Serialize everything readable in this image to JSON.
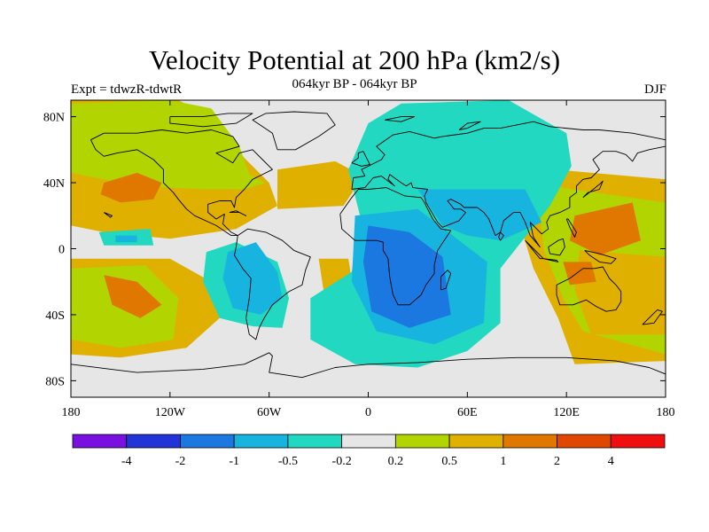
{
  "header": {
    "title": "Velocity Potential at 200 hPa (km2/s)",
    "left_label": "Expt = tdwzR-tdwtR",
    "center_label": "064kyr BP - 064kyr BP",
    "right_label": "DJF"
  },
  "chart_data": {
    "type": "heatmap",
    "projection": "cylindrical-equidistant",
    "xlim": [
      -180,
      180
    ],
    "ylim": [
      -90,
      90
    ],
    "lon_ticks": [
      {
        "value": -180,
        "label": "180"
      },
      {
        "value": -120,
        "label": "120W"
      },
      {
        "value": -60,
        "label": "60W"
      },
      {
        "value": 0,
        "label": "0"
      },
      {
        "value": 60,
        "label": "60E"
      },
      {
        "value": 120,
        "label": "120E"
      },
      {
        "value": 180,
        "label": "180"
      }
    ],
    "lat_ticks": [
      {
        "value": 80,
        "label": "80N"
      },
      {
        "value": 40,
        "label": "40N"
      },
      {
        "value": 0,
        "label": "0"
      },
      {
        "value": -40,
        "label": "40S"
      },
      {
        "value": -80,
        "label": "80S"
      }
    ],
    "colorbar": {
      "colors": [
        "#7a10e0",
        "#2233d8",
        "#1a78e0",
        "#18b4e0",
        "#22d8c0",
        "#e6e6e6",
        "#b2d400",
        "#e0b000",
        "#e07800",
        "#e04800",
        "#ee1010"
      ],
      "labels": [
        "-4",
        "-2",
        "-1",
        "-0.5",
        "-0.2",
        "0.2",
        "0.5",
        "1",
        "2",
        "4"
      ]
    },
    "field": {
      "background_level": 5,
      "regions": [
        {
          "level": 7,
          "polygon": [
            [
              -180,
              90
            ],
            [
              -115,
              90
            ],
            [
              -95,
              80
            ],
            [
              -75,
              55
            ],
            [
              -60,
              40
            ],
            [
              -55,
              26
            ],
            [
              -80,
              12
            ],
            [
              -120,
              6
            ],
            [
              -160,
              10
            ],
            [
              -180,
              14
            ]
          ]
        },
        {
          "level": 7,
          "polygon": [
            [
              -55,
              48
            ],
            [
              -20,
              53
            ],
            [
              -3,
              44
            ],
            [
              -15,
              26
            ],
            [
              -55,
              24
            ]
          ]
        },
        {
          "level": 6,
          "polygon": [
            [
              -180,
              88
            ],
            [
              -120,
              90
            ],
            [
              -95,
              85
            ],
            [
              -78,
              62
            ],
            [
              -72,
              45
            ],
            [
              -62,
              40
            ],
            [
              -75,
              36
            ],
            [
              -100,
              36
            ],
            [
              -140,
              38
            ],
            [
              -180,
              46
            ]
          ]
        },
        {
          "level": 7,
          "polygon": [
            [
              -180,
              -6
            ],
            [
              -120,
              -6
            ],
            [
              -95,
              -20
            ],
            [
              -90,
              -42
            ],
            [
              -110,
              -60
            ],
            [
              -150,
              -66
            ],
            [
              -180,
              -64
            ]
          ]
        },
        {
          "level": 6,
          "polygon": [
            [
              -180,
              -12
            ],
            [
              -135,
              -10
            ],
            [
              -115,
              -30
            ],
            [
              -118,
              -55
            ],
            [
              -150,
              -60
            ],
            [
              -180,
              -55
            ]
          ]
        },
        {
          "level": 7,
          "polygon": [
            [
              -30,
              -6
            ],
            [
              -12,
              -6
            ],
            [
              -8,
              -32
            ],
            [
              -26,
              -32
            ]
          ]
        },
        {
          "level": 7,
          "polygon": [
            [
              90,
              50
            ],
            [
              180,
              42
            ],
            [
              180,
              -68
            ],
            [
              125,
              -70
            ],
            [
              115,
              -42
            ],
            [
              100,
              -12
            ],
            [
              92,
              14
            ],
            [
              100,
              35
            ]
          ]
        },
        {
          "level": 7,
          "polygon": [
            [
              -8,
              -25
            ],
            [
              10,
              -25
            ],
            [
              14,
              -40
            ],
            [
              -6,
              -42
            ]
          ]
        },
        {
          "level": 6,
          "polygon": [
            [
              110,
              38
            ],
            [
              180,
              28
            ],
            [
              180,
              -64
            ],
            [
              130,
              -50
            ],
            [
              118,
              -30
            ],
            [
              106,
              0
            ],
            [
              104,
              22
            ]
          ]
        },
        {
          "level": 7,
          "polygon": [
            [
              128,
              -1
            ],
            [
              180,
              -5
            ],
            [
              180,
              -52
            ],
            [
              135,
              -52
            ],
            [
              125,
              -25
            ]
          ]
        },
        {
          "level": 8,
          "polygon": [
            [
              125,
              20
            ],
            [
              160,
              28
            ],
            [
              165,
              5
            ],
            [
              140,
              -4
            ],
            [
              122,
              5
            ]
          ]
        },
        {
          "level": 8,
          "polygon": [
            [
              -160,
              40
            ],
            [
              -140,
              46
            ],
            [
              -125,
              40
            ],
            [
              -130,
              30
            ],
            [
              -150,
              28
            ],
            [
              -162,
              33
            ]
          ]
        },
        {
          "level": 8,
          "polygon": [
            [
              -160,
              -16
            ],
            [
              -140,
              -20
            ],
            [
              -125,
              -34
            ],
            [
              -138,
              -42
            ],
            [
              -155,
              -34
            ]
          ]
        },
        {
          "level": 8,
          "polygon": [
            [
              118,
              -8
            ],
            [
              135,
              -8
            ],
            [
              138,
              -20
            ],
            [
              122,
              -22
            ]
          ]
        },
        {
          "level": 4,
          "polygon": [
            [
              20,
              88
            ],
            [
              85,
              90
            ],
            [
              120,
              70
            ],
            [
              123,
              50
            ],
            [
              110,
              26
            ],
            [
              80,
              -12
            ],
            [
              80,
              -45
            ],
            [
              60,
              -62
            ],
            [
              30,
              -72
            ],
            [
              -8,
              -70
            ],
            [
              -35,
              -55
            ],
            [
              -35,
              -30
            ],
            [
              -10,
              -14
            ],
            [
              -5,
              20
            ],
            [
              -12,
              48
            ],
            [
              0,
              76
            ]
          ]
        },
        {
          "level": 4,
          "polygon": [
            [
              -98,
              -2
            ],
            [
              -80,
              4
            ],
            [
              -55,
              -8
            ],
            [
              -48,
              -30
            ],
            [
              -52,
              -48
            ],
            [
              -70,
              -47
            ],
            [
              -90,
              -42
            ],
            [
              -100,
              -20
            ]
          ]
        },
        {
          "level": 3,
          "polygon": [
            [
              -85,
              -2
            ],
            [
              -68,
              4
            ],
            [
              -55,
              -14
            ],
            [
              -52,
              -30
            ],
            [
              -65,
              -40
            ],
            [
              -82,
              -36
            ],
            [
              -88,
              -18
            ]
          ]
        },
        {
          "level": 3,
          "polygon": [
            [
              30,
              36
            ],
            [
              95,
              36
            ],
            [
              105,
              16
            ],
            [
              80,
              5
            ],
            [
              60,
              8
            ],
            [
              45,
              14
            ]
          ]
        },
        {
          "level": 3,
          "polygon": [
            [
              -8,
              20
            ],
            [
              30,
              24
            ],
            [
              72,
              -8
            ],
            [
              70,
              -45
            ],
            [
              40,
              -58
            ],
            [
              5,
              -50
            ],
            [
              -10,
              -20
            ]
          ]
        },
        {
          "level": 2,
          "polygon": [
            [
              0,
              14
            ],
            [
              25,
              10
            ],
            [
              45,
              -5
            ],
            [
              50,
              -40
            ],
            [
              25,
              -48
            ],
            [
              2,
              -38
            ],
            [
              -3,
              -8
            ]
          ]
        },
        {
          "level": 4,
          "polygon": [
            [
              -163,
              10
            ],
            [
              -132,
              12
            ],
            [
              -130,
              2
            ],
            0,
            [
              -160,
              2
            ]
          ]
        },
        {
          "level": 3,
          "polygon": [
            [
              -153,
              8
            ],
            [
              -140,
              8
            ],
            [
              -140,
              4
            ],
            [
              -153,
              4
            ]
          ]
        }
      ]
    },
    "coastlines_style": {
      "stroke": "#000000"
    }
  }
}
